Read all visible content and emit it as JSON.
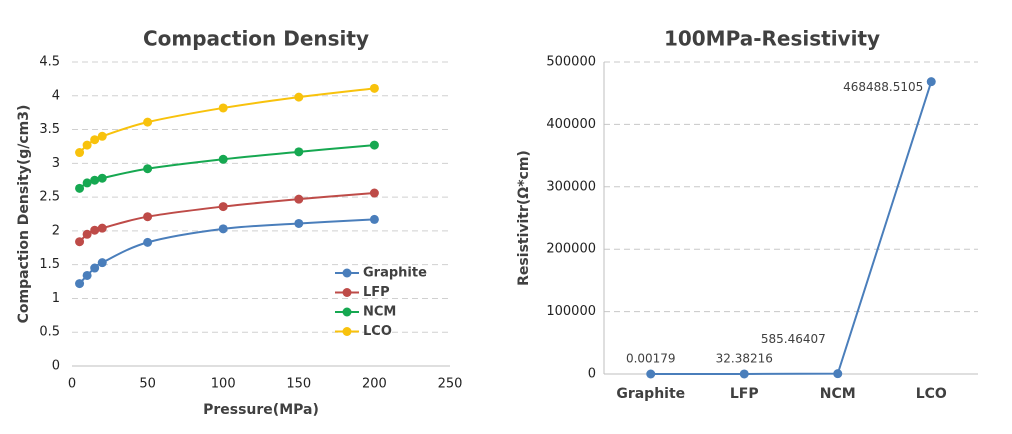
{
  "chart_data": [
    {
      "type": "line",
      "smooth": true,
      "title": "Compaction Density",
      "x_label": "Pressure(MPa)",
      "y_label": "Compaction Density(g/cm3)",
      "x": [
        5,
        10,
        15,
        20,
        50,
        100,
        150,
        200
      ],
      "series": [
        {
          "name": "Graphite",
          "color": "#4a7ebb",
          "values": [
            1.22,
            1.34,
            1.45,
            1.53,
            1.83,
            2.03,
            2.11,
            2.17
          ]
        },
        {
          "name": "LFP",
          "color": "#be4b48",
          "values": [
            1.84,
            1.95,
            2.01,
            2.04,
            2.21,
            2.36,
            2.47,
            2.56
          ]
        },
        {
          "name": "NCM",
          "color": "#16a851",
          "values": [
            2.63,
            2.71,
            2.75,
            2.78,
            2.92,
            3.06,
            3.17,
            3.27
          ]
        },
        {
          "name": "LCO",
          "color": "#f8c20c",
          "values": [
            3.16,
            3.27,
            3.35,
            3.4,
            3.61,
            3.82,
            3.98,
            4.11
          ]
        }
      ],
      "xlim": [
        0,
        250
      ],
      "xticks": [
        0,
        50,
        100,
        150,
        200,
        250
      ],
      "ylim": [
        0,
        4.5
      ],
      "yticks": [
        0,
        0.5,
        1,
        1.5,
        2,
        2.5,
        3,
        3.5,
        4,
        4.5
      ],
      "grid": true,
      "legend": "lower-right"
    },
    {
      "type": "line",
      "smooth": false,
      "title": "100MPa-Resistivity",
      "y_label": "Resistivitr(Ω*cm)",
      "categories": [
        "Graphite",
        "LFP",
        "NCM",
        "LCO"
      ],
      "values": [
        0.00179,
        32.38216,
        585.46407,
        468488.5105
      ],
      "color": "#4a7ebb",
      "ylim": [
        0,
        500000
      ],
      "yticks": [
        0,
        100000,
        200000,
        300000,
        400000,
        500000
      ],
      "grid": true
    }
  ]
}
